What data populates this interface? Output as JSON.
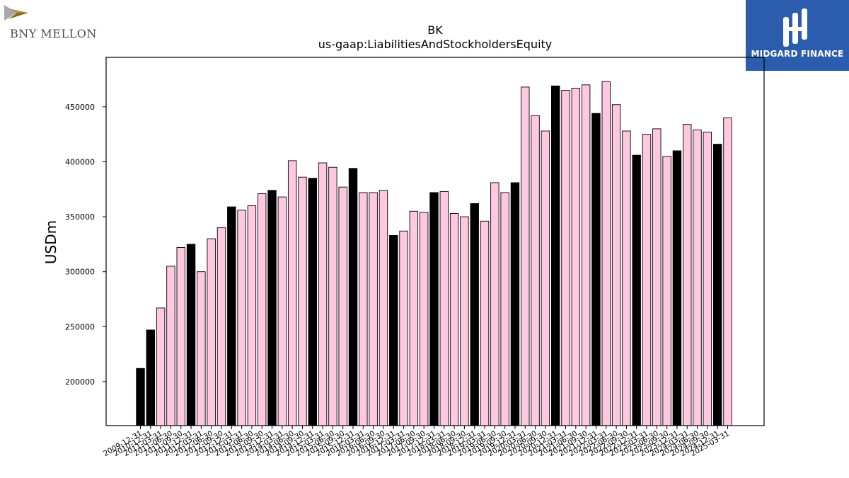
{
  "logos": {
    "left_name": "BNY MELLON",
    "right_name": "MIDGARD FINANCE",
    "right_bg": "#2b5cad"
  },
  "chart_data": {
    "type": "bar",
    "title": "BK",
    "subtitle": "us-gaap:LiabilitiesAndStockholdersEquity",
    "ylabel": "USDm",
    "xlabel": "",
    "ylim": [
      160000,
      495000
    ],
    "yticks": [
      200000,
      250000,
      300000,
      350000,
      400000,
      450000
    ],
    "grid": false,
    "legend": "none",
    "colors": {
      "annual": "#000000",
      "quarterly": "#ffc8e0",
      "edge": "#000000"
    },
    "categories": [
      "2009-12-31",
      "2010-12-31",
      "2011-03-31",
      "2011-06-30",
      "2011-09-30",
      "2011-12-31",
      "2012-03-31",
      "2012-06-30",
      "2012-09-30",
      "2012-12-31",
      "2013-03-31",
      "2013-06-30",
      "2013-09-30",
      "2013-12-31",
      "2014-03-31",
      "2014-06-30",
      "2014-09-30",
      "2014-12-31",
      "2015-03-31",
      "2015-06-30",
      "2015-09-30",
      "2015-12-31",
      "2016-03-31",
      "2016-06-30",
      "2016-09-30",
      "2016-12-31",
      "2017-03-31",
      "2017-06-30",
      "2017-09-30",
      "2017-12-31",
      "2018-03-31",
      "2018-06-30",
      "2018-09-30",
      "2018-12-31",
      "2019-03-31",
      "2019-06-30",
      "2019-09-30",
      "2019-12-31",
      "2020-03-31",
      "2020-06-30",
      "2020-09-30",
      "2020-12-31",
      "2021-03-31",
      "2021-06-30",
      "2021-09-30",
      "2021-12-31",
      "2022-03-31",
      "2022-06-30",
      "2022-09-30",
      "2022-12-31",
      "2023-03-31",
      "2023-06-30",
      "2023-09-30",
      "2023-12-31",
      "2024-03-31",
      "2024-06-30",
      "2024-09-30",
      "2024-12-31",
      "2025-03-31"
    ],
    "values": [
      212000,
      247000,
      267000,
      305000,
      322000,
      325000,
      300000,
      330000,
      340000,
      359000,
      356000,
      360000,
      371000,
      374000,
      368000,
      401000,
      386000,
      385000,
      399000,
      395000,
      377000,
      394000,
      372000,
      372000,
      374000,
      333000,
      337000,
      355000,
      354000,
      372000,
      373000,
      353000,
      350000,
      362000,
      346000,
      381000,
      372000,
      381000,
      468000,
      442000,
      428000,
      469000,
      465000,
      467000,
      470000,
      444000,
      473000,
      452000,
      428000,
      406000,
      425000,
      430000,
      405000,
      410000,
      434000,
      429000,
      427000,
      416000,
      440000
    ],
    "is_annual": [
      true,
      true,
      false,
      false,
      false,
      true,
      false,
      false,
      false,
      true,
      false,
      false,
      false,
      true,
      false,
      false,
      false,
      true,
      false,
      false,
      false,
      true,
      false,
      false,
      false,
      true,
      false,
      false,
      false,
      true,
      false,
      false,
      false,
      true,
      false,
      false,
      false,
      true,
      false,
      false,
      false,
      true,
      false,
      false,
      false,
      true,
      false,
      false,
      false,
      true,
      false,
      false,
      false,
      true,
      false,
      false,
      false,
      true,
      false
    ]
  }
}
